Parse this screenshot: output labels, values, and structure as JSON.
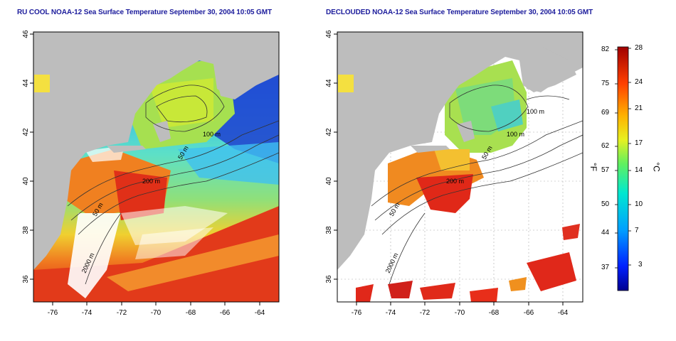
{
  "panels": [
    {
      "title": "RU COOL NOAA-12 Sea Surface Temperature September 30, 2004 10:05 GMT",
      "clouded": true,
      "x_ticks": [
        "-76",
        "-74",
        "-72",
        "-70",
        "-68",
        "-66",
        "-64"
      ],
      "y_ticks": [
        "46",
        "44",
        "42",
        "40",
        "38",
        "36"
      ],
      "contours": [
        "100 m",
        "50 m",
        "200 m",
        "50 m",
        "2000 m"
      ]
    },
    {
      "title": "DECLOUDED NOAA-12 Sea Surface Temperature September 30, 2004 10:05 GMT",
      "clouded": false,
      "x_ticks": [
        "-76",
        "-74",
        "-72",
        "-70",
        "-68",
        "-66",
        "-64"
      ],
      "y_ticks": [
        "46",
        "44",
        "42",
        "40",
        "38",
        "36"
      ],
      "contours": [
        "100 m",
        "100 m",
        "50 m",
        "200 m",
        "50 m",
        "2000 m"
      ]
    }
  ],
  "colorbar": {
    "fahrenheit_ticks": [
      "82",
      "75",
      "69",
      "62",
      "57",
      "50",
      "44",
      "37"
    ],
    "celsius_ticks": [
      "28",
      "24",
      "21",
      "17",
      "14",
      "10",
      "7",
      "3"
    ],
    "left_unit": "°F",
    "right_unit": "°C"
  },
  "colors": {
    "land": "#bdbdbd",
    "no_data": "#ffffff",
    "title": "#1c1c9c"
  }
}
